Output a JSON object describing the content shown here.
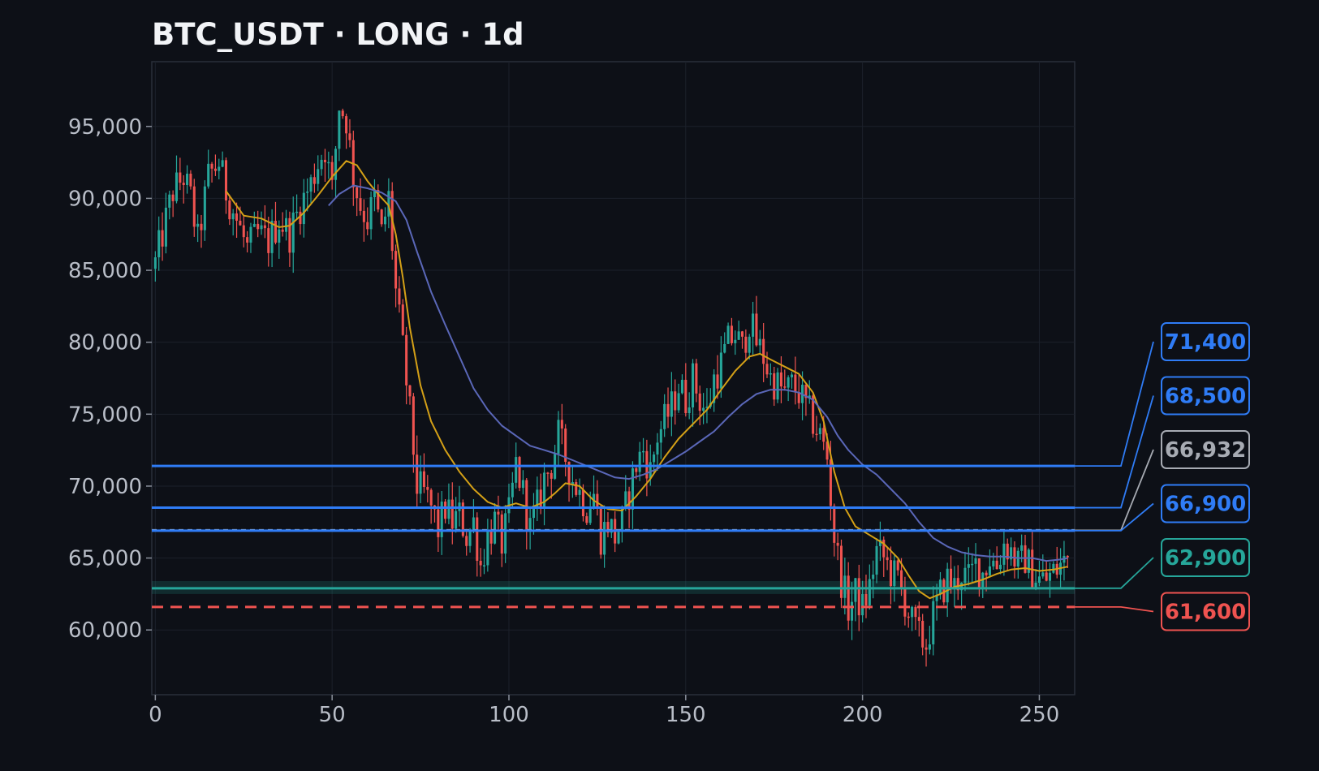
{
  "chart_data": {
    "type": "candlestick",
    "title": "BTC_USDT · LONG · 1d",
    "xlabel": "",
    "ylabel": "",
    "xlim": [
      -1,
      260
    ],
    "ylim": [
      55500,
      99500
    ],
    "x_ticks": [
      0,
      50,
      100,
      150,
      200,
      250
    ],
    "y_ticks": [
      60000,
      65000,
      70000,
      75000,
      80000,
      85000,
      90000,
      95000
    ],
    "grid": true,
    "colors": {
      "background": "#0d1017",
      "up_candle": "#26a69a",
      "down_candle": "#ef5350",
      "ma_fast": "#d4a017",
      "ma_slow": "#5a67b8",
      "level_blue": "#2f7cf6",
      "level_gray": "#a7abb3",
      "level_green": "#26a69a",
      "level_red": "#ef5350"
    },
    "price_anchors": [
      [
        0,
        85500
      ],
      [
        3,
        88500
      ],
      [
        5,
        90500
      ],
      [
        8,
        91500
      ],
      [
        10,
        90000
      ],
      [
        12,
        87000
      ],
      [
        15,
        91500
      ],
      [
        18,
        92500
      ],
      [
        20,
        90500
      ],
      [
        23,
        88500
      ],
      [
        26,
        86500
      ],
      [
        29,
        87500
      ],
      [
        32,
        87000
      ],
      [
        35,
        88500
      ],
      [
        38,
        87500
      ],
      [
        41,
        89500
      ],
      [
        44,
        91000
      ],
      [
        46,
        92500
      ],
      [
        48,
        93500
      ],
      [
        50,
        90500
      ],
      [
        52,
        96500
      ],
      [
        54,
        95500
      ],
      [
        56,
        91500
      ],
      [
        58,
        89500
      ],
      [
        60,
        88500
      ],
      [
        62,
        90000
      ],
      [
        64,
        87500
      ],
      [
        66,
        90000
      ],
      [
        68,
        83500
      ],
      [
        70,
        79500
      ],
      [
        72,
        75000
      ],
      [
        74,
        70000
      ],
      [
        76,
        69500
      ],
      [
        78,
        68500
      ],
      [
        80,
        67000
      ],
      [
        82,
        68500
      ],
      [
        84,
        67500
      ],
      [
        86,
        68000
      ],
      [
        88,
        66500
      ],
      [
        90,
        67500
      ],
      [
        92,
        64500
      ],
      [
        94,
        66500
      ],
      [
        96,
        67500
      ],
      [
        98,
        66000
      ],
      [
        100,
        68000
      ],
      [
        102,
        71500
      ],
      [
        104,
        69500
      ],
      [
        106,
        67000
      ],
      [
        108,
        68500
      ],
      [
        110,
        70500
      ],
      [
        112,
        71500
      ],
      [
        114,
        73500
      ],
      [
        116,
        72000
      ],
      [
        118,
        70500
      ],
      [
        120,
        69500
      ],
      [
        122,
        68500
      ],
      [
        124,
        69500
      ],
      [
        126,
        66500
      ],
      [
        128,
        67500
      ],
      [
        130,
        66500
      ],
      [
        132,
        67500
      ],
      [
        134,
        69500
      ],
      [
        136,
        71500
      ],
      [
        138,
        72500
      ],
      [
        140,
        71000
      ],
      [
        142,
        73500
      ],
      [
        144,
        74500
      ],
      [
        146,
        75500
      ],
      [
        148,
        77000
      ],
      [
        150,
        76000
      ],
      [
        152,
        77500
      ],
      [
        154,
        76000
      ],
      [
        156,
        75000
      ],
      [
        158,
        77500
      ],
      [
        160,
        78500
      ],
      [
        162,
        80000
      ],
      [
        164,
        80500
      ],
      [
        166,
        79500
      ],
      [
        168,
        81500
      ],
      [
        170,
        80000
      ],
      [
        172,
        79000
      ],
      [
        174,
        77500
      ],
      [
        176,
        77000
      ],
      [
        178,
        76500
      ],
      [
        180,
        77000
      ],
      [
        182,
        76500
      ],
      [
        184,
        75500
      ],
      [
        186,
        74500
      ],
      [
        188,
        73500
      ],
      [
        190,
        72000
      ],
      [
        192,
        66500
      ],
      [
        194,
        63500
      ],
      [
        196,
        61500
      ],
      [
        198,
        62500
      ],
      [
        200,
        61500
      ],
      [
        202,
        63000
      ],
      [
        204,
        65500
      ],
      [
        206,
        65000
      ],
      [
        208,
        64000
      ],
      [
        210,
        63500
      ],
      [
        212,
        62000
      ],
      [
        214,
        60500
      ],
      [
        216,
        59500
      ],
      [
        218,
        59000
      ],
      [
        220,
        61000
      ],
      [
        222,
        62500
      ],
      [
        224,
        63500
      ],
      [
        226,
        63000
      ],
      [
        228,
        64000
      ],
      [
        230,
        63500
      ],
      [
        232,
        64500
      ],
      [
        234,
        64000
      ],
      [
        236,
        65000
      ],
      [
        238,
        64500
      ],
      [
        240,
        66000
      ],
      [
        242,
        65500
      ],
      [
        244,
        64500
      ],
      [
        246,
        65000
      ],
      [
        248,
        64000
      ],
      [
        250,
        63500
      ],
      [
        252,
        63500
      ],
      [
        254,
        64000
      ],
      [
        256,
        64500
      ],
      [
        258,
        65000
      ]
    ],
    "moving_averages": [
      {
        "period": "fast",
        "color": "#d4a017",
        "points": [
          [
            20,
            90500
          ],
          [
            25,
            88800
          ],
          [
            30,
            88600
          ],
          [
            35,
            88000
          ],
          [
            38,
            88100
          ],
          [
            42,
            89000
          ],
          [
            46,
            90200
          ],
          [
            50,
            91500
          ],
          [
            54,
            92600
          ],
          [
            57,
            92300
          ],
          [
            60,
            91200
          ],
          [
            63,
            90300
          ],
          [
            66,
            89500
          ],
          [
            68,
            87500
          ],
          [
            70,
            84500
          ],
          [
            72,
            81000
          ],
          [
            75,
            77000
          ],
          [
            78,
            74500
          ],
          [
            82,
            72500
          ],
          [
            86,
            71000
          ],
          [
            90,
            69800
          ],
          [
            94,
            68900
          ],
          [
            98,
            68500
          ],
          [
            102,
            68800
          ],
          [
            106,
            68500
          ],
          [
            110,
            68900
          ],
          [
            113,
            69500
          ],
          [
            116,
            70200
          ],
          [
            120,
            70000
          ],
          [
            124,
            69000
          ],
          [
            128,
            68400
          ],
          [
            132,
            68300
          ],
          [
            136,
            69300
          ],
          [
            140,
            70500
          ],
          [
            144,
            72000
          ],
          [
            148,
            73300
          ],
          [
            152,
            74300
          ],
          [
            156,
            75300
          ],
          [
            160,
            76700
          ],
          [
            164,
            78000
          ],
          [
            168,
            79000
          ],
          [
            171,
            79200
          ],
          [
            174,
            78800
          ],
          [
            178,
            78300
          ],
          [
            182,
            77800
          ],
          [
            186,
            76500
          ],
          [
            189,
            74500
          ],
          [
            192,
            71000
          ],
          [
            195,
            68500
          ],
          [
            198,
            67200
          ],
          [
            202,
            66600
          ],
          [
            206,
            66000
          ],
          [
            210,
            65000
          ],
          [
            213,
            63800
          ],
          [
            216,
            62700
          ],
          [
            219,
            62200
          ],
          [
            222,
            62500
          ],
          [
            226,
            63000
          ],
          [
            230,
            63200
          ],
          [
            234,
            63500
          ],
          [
            238,
            63900
          ],
          [
            242,
            64200
          ],
          [
            246,
            64300
          ],
          [
            250,
            64100
          ],
          [
            254,
            64200
          ],
          [
            258,
            64400
          ]
        ]
      },
      {
        "period": "slow",
        "color": "#5a67b8",
        "points": [
          [
            49,
            89500
          ],
          [
            52,
            90300
          ],
          [
            56,
            90900
          ],
          [
            60,
            90700
          ],
          [
            64,
            90400
          ],
          [
            68,
            89800
          ],
          [
            71,
            88500
          ],
          [
            74,
            86300
          ],
          [
            78,
            83500
          ],
          [
            82,
            81200
          ],
          [
            86,
            79000
          ],
          [
            90,
            76800
          ],
          [
            94,
            75300
          ],
          [
            98,
            74200
          ],
          [
            102,
            73500
          ],
          [
            106,
            72800
          ],
          [
            110,
            72500
          ],
          [
            114,
            72200
          ],
          [
            118,
            71800
          ],
          [
            122,
            71400
          ],
          [
            126,
            71000
          ],
          [
            130,
            70600
          ],
          [
            134,
            70500
          ],
          [
            138,
            70800
          ],
          [
            142,
            71200
          ],
          [
            146,
            71800
          ],
          [
            150,
            72400
          ],
          [
            154,
            73100
          ],
          [
            158,
            73800
          ],
          [
            162,
            74800
          ],
          [
            166,
            75700
          ],
          [
            170,
            76400
          ],
          [
            174,
            76700
          ],
          [
            178,
            76700
          ],
          [
            182,
            76500
          ],
          [
            186,
            76000
          ],
          [
            190,
            74800
          ],
          [
            193,
            73500
          ],
          [
            196,
            72500
          ],
          [
            200,
            71500
          ],
          [
            204,
            70800
          ],
          [
            208,
            69800
          ],
          [
            212,
            68800
          ],
          [
            216,
            67500
          ],
          [
            220,
            66400
          ],
          [
            224,
            65800
          ],
          [
            228,
            65400
          ],
          [
            232,
            65200
          ],
          [
            236,
            65100
          ],
          [
            240,
            65100
          ],
          [
            244,
            65000
          ],
          [
            248,
            65000
          ],
          [
            252,
            64800
          ],
          [
            256,
            64900
          ],
          [
            258,
            65000
          ]
        ]
      }
    ],
    "levels": [
      {
        "label": "71,400",
        "value": 71400,
        "kind": "take-profit-2",
        "color": "#2f7cf6",
        "style": "solid"
      },
      {
        "label": "68,500",
        "value": 68500,
        "kind": "take-profit-1",
        "color": "#2f7cf6",
        "style": "solid"
      },
      {
        "label": "66,932",
        "value": 66932,
        "kind": "current-price",
        "color": "#a7abb3",
        "style": "dashed"
      },
      {
        "label": "66,900",
        "value": 66900,
        "kind": "entry",
        "color": "#2f7cf6",
        "style": "solid"
      },
      {
        "label": "62,900",
        "value": 62900,
        "kind": "support",
        "color": "#26a69a",
        "style": "solid"
      },
      {
        "label": "61,600",
        "value": 61600,
        "kind": "stop-loss",
        "color": "#ef5350",
        "style": "dashed"
      }
    ],
    "support_zone": [
      62500,
      63400
    ]
  }
}
